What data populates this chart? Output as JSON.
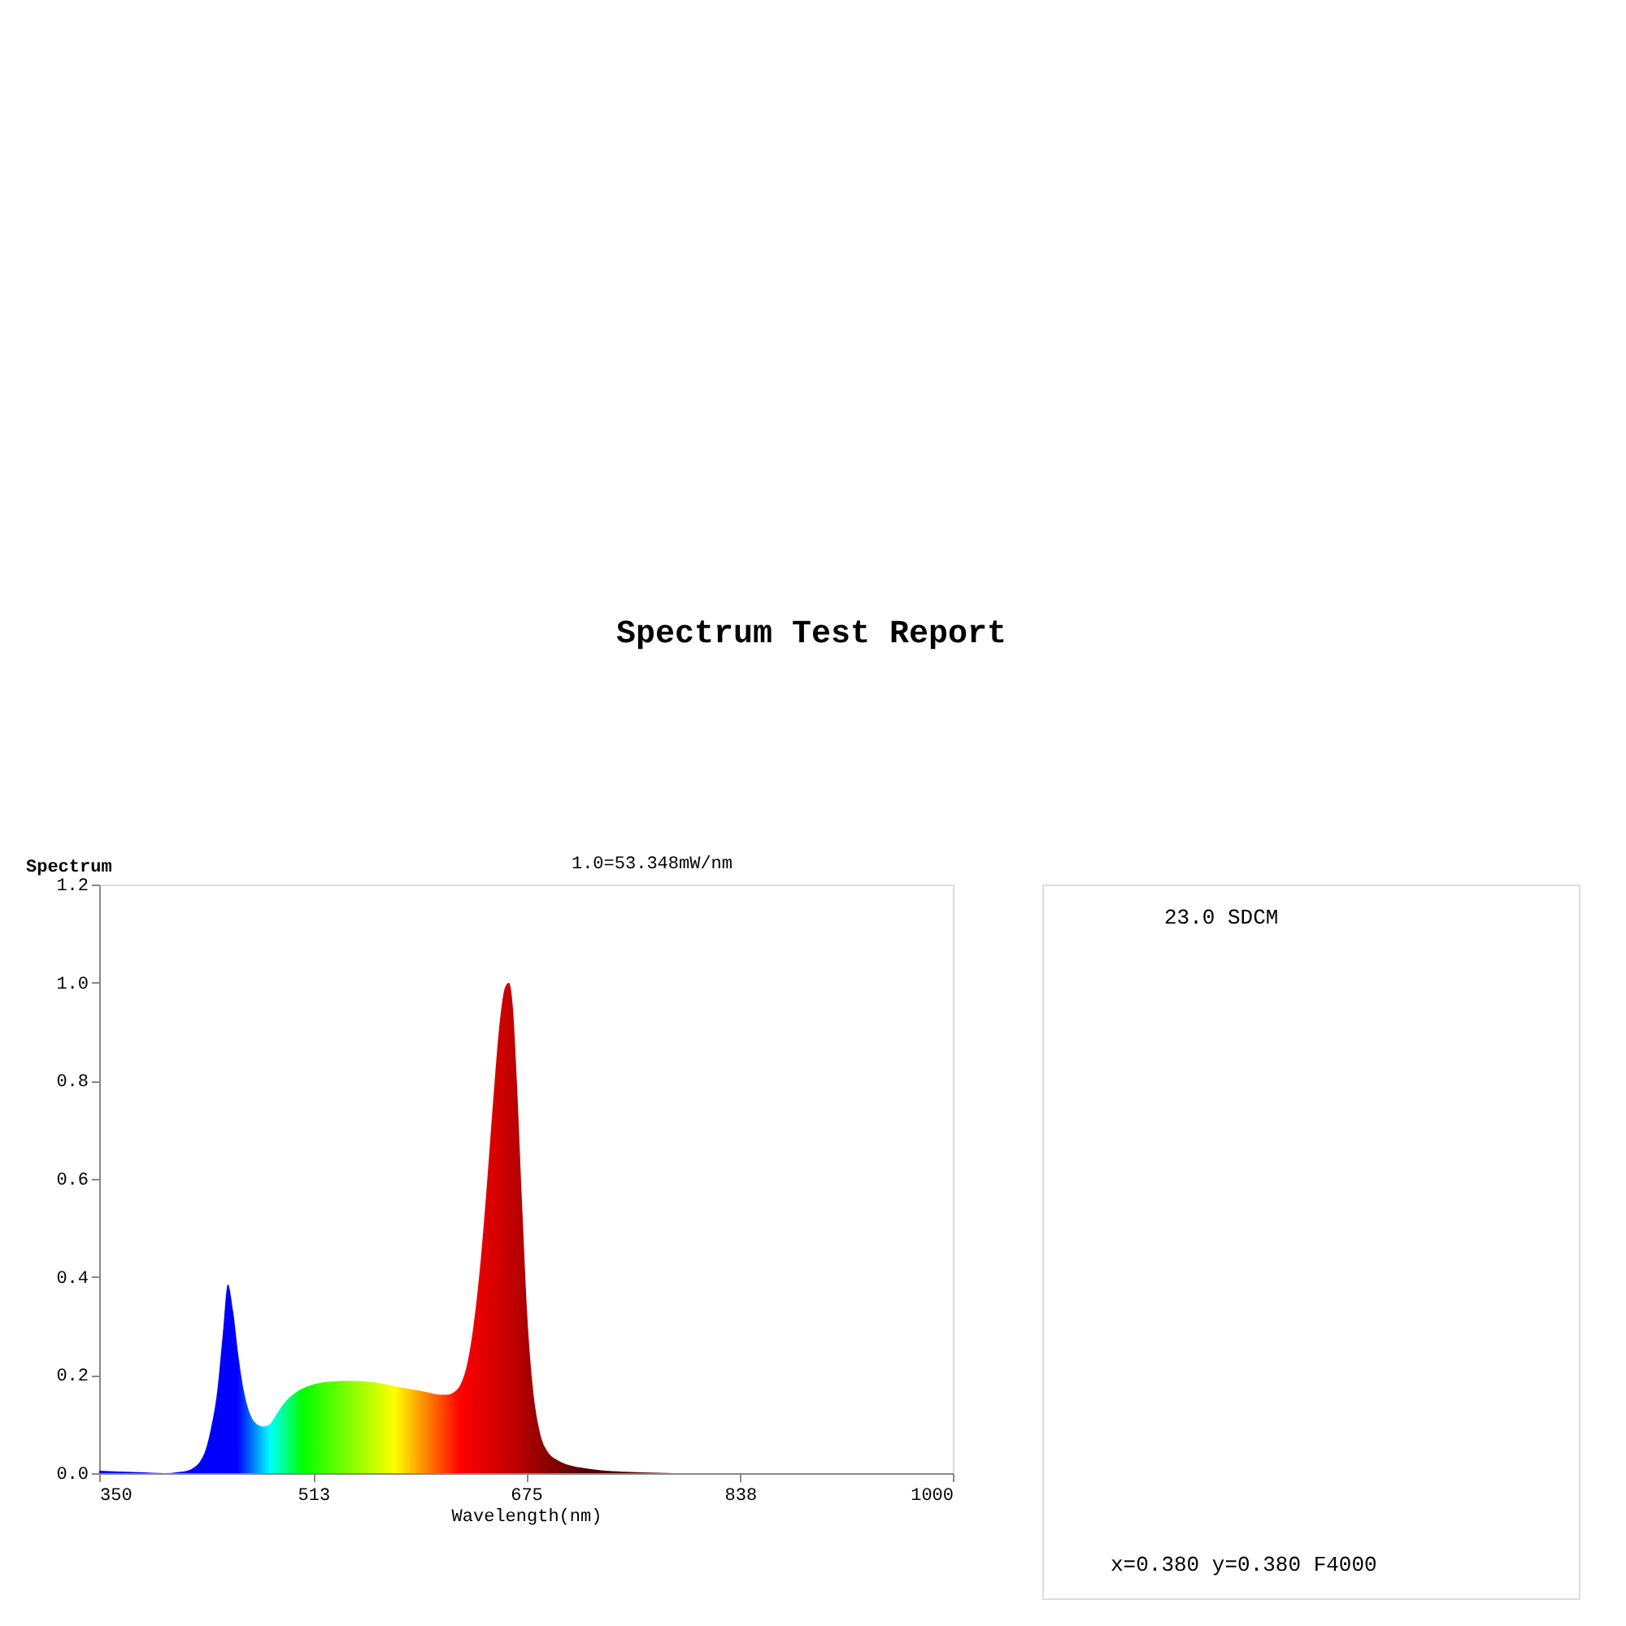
{
  "chart_data": [
    {
      "type": "area",
      "title": "Spectrum Test Report",
      "xlabel": "Wavelength(nm)",
      "ylabel": "Spectrum",
      "x": [
        350,
        380,
        400,
        410,
        420,
        430,
        435,
        440,
        444,
        448,
        452,
        456,
        460,
        465,
        470,
        475,
        480,
        485,
        490,
        500,
        510,
        520,
        540,
        560,
        580,
        600,
        610,
        615,
        620,
        625,
        630,
        635,
        640,
        645,
        650,
        655,
        659,
        662,
        665,
        668,
        672,
        676,
        680,
        685,
        690,
        700,
        720,
        750,
        800,
        900,
        1000
      ],
      "series": [
        {
          "color": "#c00000",
          "values": [
            0.005,
            0.002,
            0.0,
            0.002,
            0.008,
            0.04,
            0.09,
            0.17,
            0.28,
            0.385,
            0.33,
            0.24,
            0.17,
            0.12,
            0.1,
            0.095,
            0.1,
            0.12,
            0.14,
            0.165,
            0.178,
            0.185,
            0.188,
            0.185,
            0.175,
            0.165,
            0.16,
            0.16,
            0.165,
            0.18,
            0.22,
            0.3,
            0.42,
            0.58,
            0.76,
            0.92,
            0.99,
            1.0,
            0.95,
            0.8,
            0.55,
            0.32,
            0.18,
            0.09,
            0.05,
            0.025,
            0.01,
            0.003,
            0.0,
            0.0,
            0.0
          ]
        }
      ],
      "xlim": [
        350,
        1000
      ],
      "xticks": [
        350,
        513,
        675,
        838,
        1000
      ],
      "ylim": [
        0,
        1.2
      ],
      "yticks": [
        {
          "value": 0,
          "label": "0.0"
        },
        {
          "value": 0.2,
          "label": "0.2"
        },
        {
          "value": 0.4,
          "label": "0.4"
        },
        {
          "value": 0.6,
          "label": "0.6"
        },
        {
          "value": 0.8,
          "label": "0.8"
        },
        {
          "value": 1.0,
          "label": "1.0"
        },
        {
          "value": 1.2,
          "label": "1.2"
        }
      ],
      "grid": false,
      "annotations": [
        "1.0=53.348mW/nm"
      ]
    },
    {
      "type": "other",
      "annotations": [
        "23.0 SDCM",
        "x=0.380 y=0.380 F4000"
      ]
    }
  ]
}
